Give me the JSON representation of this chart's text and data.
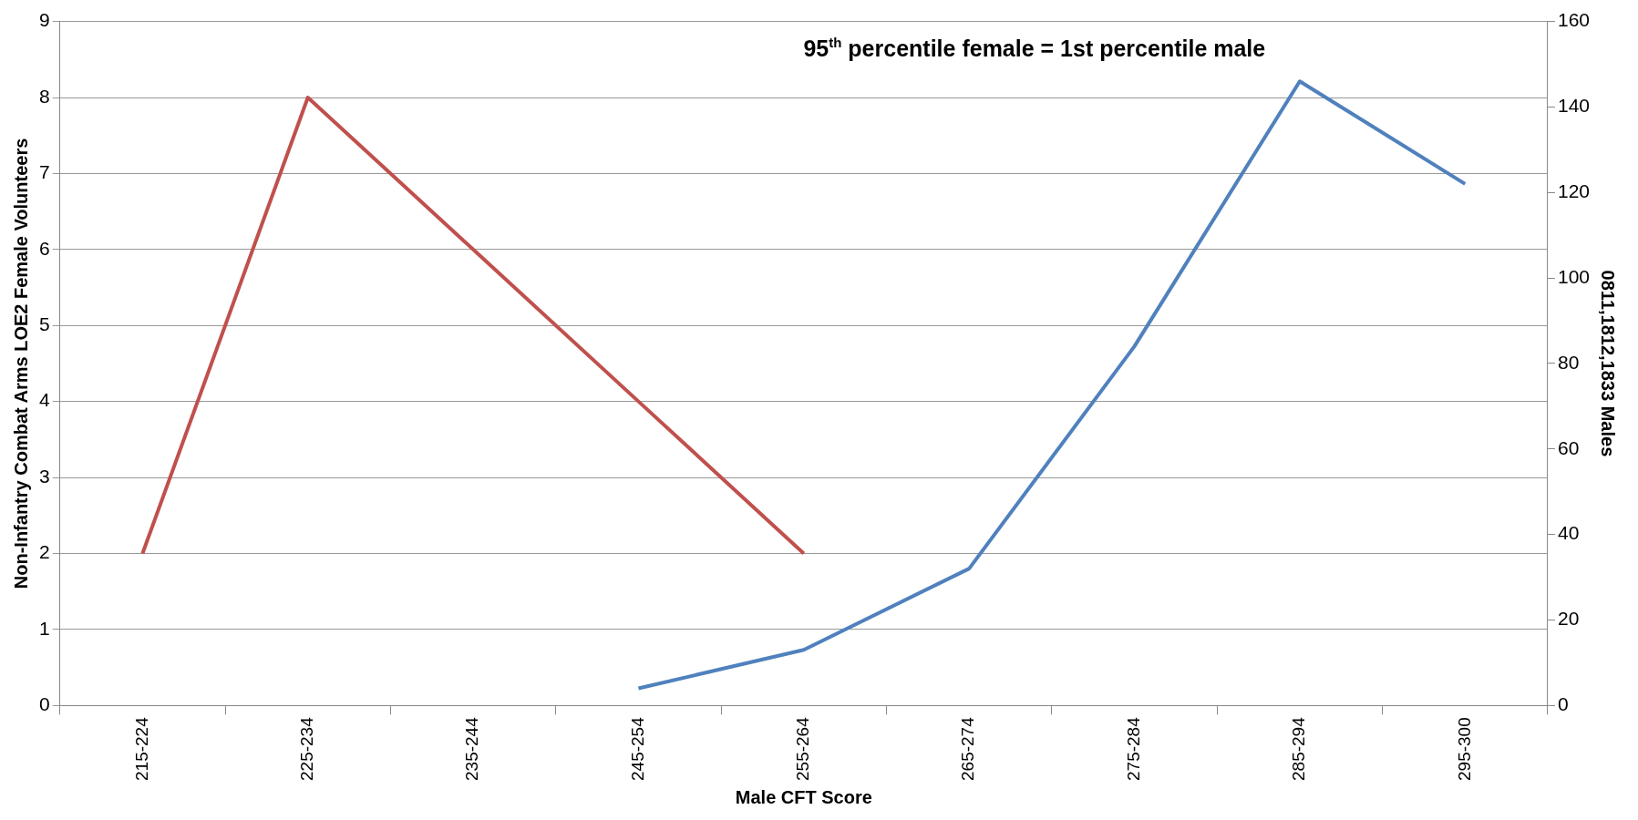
{
  "chart_data": {
    "type": "line",
    "title": "95$^{th}$ percentile female = 1st percentile male",
    "xlabel": "Male CFT Score",
    "ylabel": "Non-Infantry Combat Arms LOE2 Female Volunteers",
    "y2label": "0811,1812,1833 Males",
    "categories": [
      "215-224",
      "225-234",
      "235-244",
      "245-254",
      "255-264",
      "265-274",
      "275-284",
      "285-294",
      "295-300"
    ],
    "series": [
      {
        "color": "#c0504d",
        "values": [
          2,
          8,
          6,
          4,
          2,
          null,
          null,
          null,
          null
        ]
      },
      {
        "color": "#4f81bd",
        "axis": "y2",
        "values": [
          null,
          null,
          null,
          4,
          13,
          32,
          84,
          146,
          122
        ]
      }
    ],
    "ylim": [
      0,
      9
    ],
    "yticks": [
      0,
      1,
      2,
      3,
      4,
      5,
      6,
      7,
      8,
      9
    ],
    "y2lim": [
      0,
      160
    ],
    "y2ticks": [
      0,
      20,
      40,
      60,
      80,
      100,
      120,
      140,
      160
    ],
    "grid": "y",
    "legend": false,
    "marker": "none",
    "line_style": "solid"
  }
}
